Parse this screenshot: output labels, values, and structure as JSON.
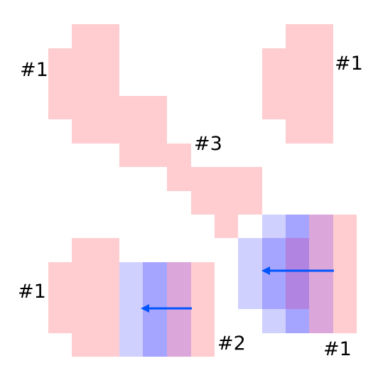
{
  "labels": {
    "top_left": "#1",
    "top_right": "#1",
    "middle": "#3",
    "bottom_left": "#1",
    "bottom_middle": "#2",
    "bottom_right": "#1"
  },
  "colors": {
    "pink": "#ffcdd0",
    "lavender": "#d0d0ff",
    "blue": "#a5a5ff",
    "mauve": "#dba6da",
    "purple": "#b084e0",
    "arrow": "#0055ff"
  }
}
